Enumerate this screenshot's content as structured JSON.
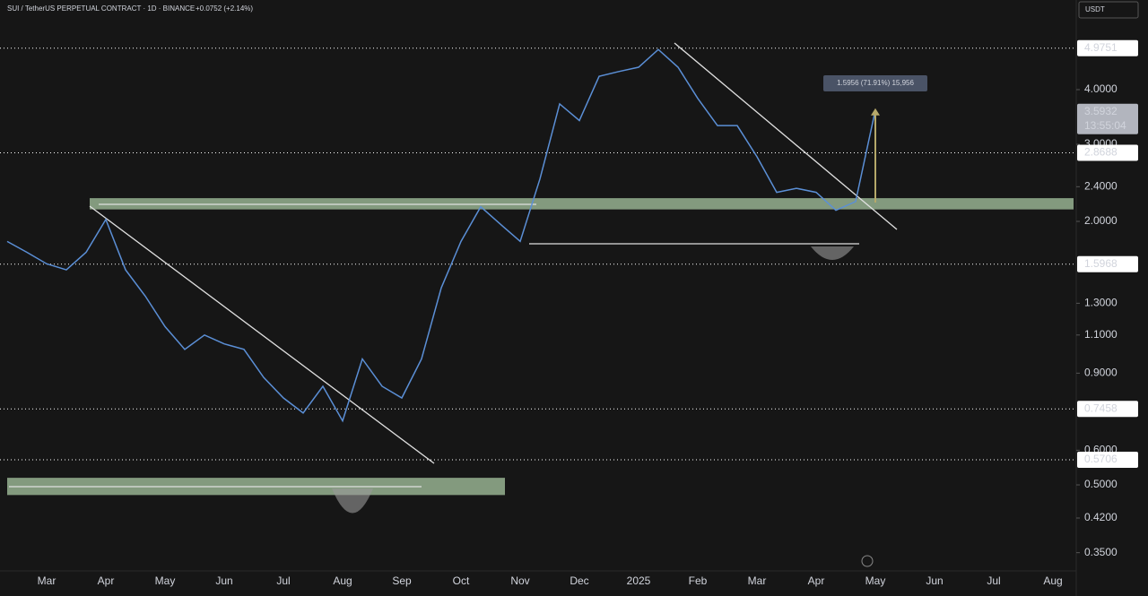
{
  "header": {
    "symbol": "SUI / TetherUS PERPETUAL CONTRACT · 1D · BINANCE",
    "change": "+0.0752 (+2.14%)",
    "currency": "USDT"
  },
  "chart_data": {
    "type": "line",
    "log_scale": true,
    "color": "#5b8fd6",
    "categories": [
      null,
      null,
      "Mar",
      null,
      null,
      "Apr",
      null,
      null,
      "May",
      null,
      null,
      "Jun",
      null,
      null,
      "Jul",
      null,
      null,
      "Aug",
      null,
      null,
      "Sep",
      null,
      null,
      "Oct",
      null,
      null,
      "Nov",
      null,
      null,
      "Dec",
      null,
      null,
      "2025",
      null,
      null,
      "Feb",
      null,
      null,
      "Mar",
      null,
      null,
      "Apr",
      null,
      null,
      "May",
      null,
      null,
      "Jun",
      null,
      null,
      "Jul",
      null,
      null,
      "Aug"
    ],
    "values": [
      1.8,
      1.7,
      1.6,
      1.55,
      1.7,
      2.02,
      1.55,
      1.35,
      1.15,
      1.02,
      1.1,
      1.05,
      1.02,
      0.88,
      0.79,
      0.73,
      0.84,
      0.7,
      0.97,
      0.84,
      0.79,
      0.97,
      1.41,
      1.8,
      2.16,
      1.97,
      1.8,
      2.5,
      3.71,
      3.4,
      4.29,
      4.4,
      4.5,
      4.94,
      4.5,
      3.82,
      3.31,
      3.31,
      2.81,
      2.33,
      2.38,
      2.33,
      2.12,
      2.22,
      3.5932,
      null,
      null,
      null,
      null,
      null,
      null,
      null,
      null,
      null
    ],
    "ylim": [
      0.318,
      6.41
    ],
    "yticks": [
      {
        "value": 0.35,
        "label": "0.3500"
      },
      {
        "value": 0.42,
        "label": "0.4200"
      },
      {
        "value": 0.5,
        "label": "0.5000"
      },
      {
        "value": 0.6,
        "label": "0.6000"
      },
      {
        "value": 0.9,
        "label": "0.9000"
      },
      {
        "value": 1.1,
        "label": "1.1000"
      },
      {
        "value": 1.3,
        "label": "1.3000"
      },
      {
        "value": 2,
        "label": "2.0000"
      },
      {
        "value": 2.4,
        "label": "2.4000"
      },
      {
        "value": 3,
        "label": "3.0000"
      },
      {
        "value": 4,
        "label": "4.0000"
      }
    ],
    "levels": [
      4.9751,
      2.8688,
      1.5968,
      0.7458,
      0.5706
    ],
    "zones": [
      {
        "low": 2.13,
        "high": 2.26
      },
      {
        "low": 0.474,
        "high": 0.519
      }
    ],
    "last_price": 3.5932,
    "countdown": "13:55:04",
    "measure_label": "1.5956 (71.91%) 15,956"
  }
}
